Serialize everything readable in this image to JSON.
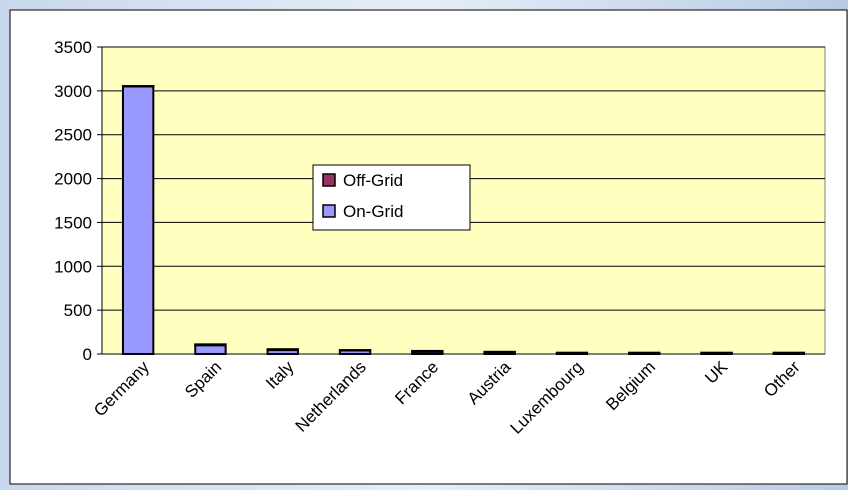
{
  "chart_data": {
    "type": "stacked_bar",
    "categories": [
      "Germany",
      "Spain",
      "Italy",
      "Netherlands",
      "France",
      "Austria",
      "Luxembourg",
      "Belgium",
      "UK",
      "Other"
    ],
    "series": [
      {
        "name": "On-Grid",
        "color": "#9999ff",
        "values": [
          3050,
          100,
          45,
          40,
          25,
          20,
          15,
          15,
          10,
          10
        ]
      },
      {
        "name": "Off-Grid",
        "color": "#993366",
        "values": [
          5,
          10,
          10,
          5,
          10,
          5,
          0,
          0,
          5,
          5
        ]
      }
    ],
    "ylim": [
      0,
      3500
    ],
    "yticks": [
      0,
      500,
      1000,
      1500,
      2000,
      2500,
      3000,
      3500
    ],
    "grid": true,
    "plot_background": "#ffffc0"
  }
}
